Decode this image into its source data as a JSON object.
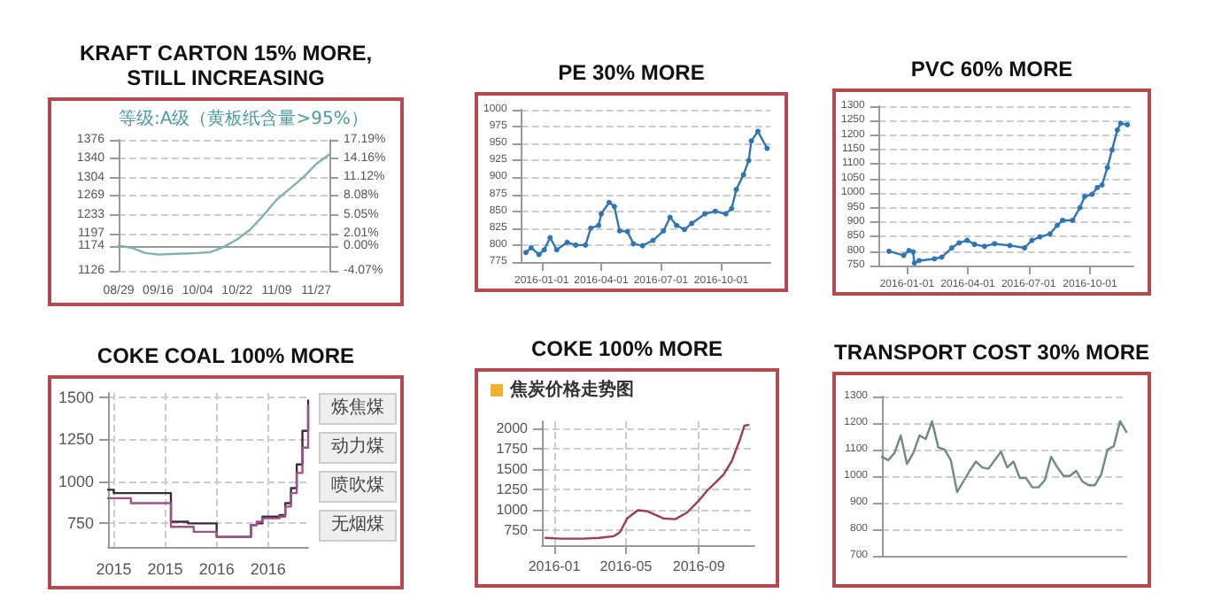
{
  "chart_data": [
    {
      "type": "line",
      "title": "KRAFT CARTON 15% MORE, STILL INCREASING",
      "subtitle": "等级:A级（黄板纸含量>95%）",
      "categories": [
        "08/29",
        null,
        null,
        "09/16",
        null,
        null,
        "10/04",
        null,
        null,
        "10/22",
        null,
        null,
        "11/09",
        null,
        null,
        "11/27",
        null
      ],
      "series": [
        {
          "color": "#7fb0b0",
          "values": [
            1174,
            1170,
            1160,
            1157,
            1158,
            1159,
            1160,
            1162,
            1172,
            1186,
            1205,
            1232,
            1262,
            1283,
            1304,
            1330,
            1348
          ]
        }
      ],
      "ylim": [
        1126,
        1376
      ],
      "yticks": [
        1126,
        1174,
        1197,
        1233,
        1269,
        1304,
        1340,
        1376
      ],
      "y2lim": [
        -4.07,
        17.19
      ],
      "y2ticks": [
        {
          "value": -4.07,
          "label": "-4.07%"
        },
        {
          "value": 0,
          "label": "0.00%"
        },
        {
          "value": 2.01,
          "label": "2.01%"
        },
        {
          "value": 5.05,
          "label": "5.05%"
        },
        {
          "value": 8.08,
          "label": "8.08%"
        },
        {
          "value": 11.12,
          "label": "11.12%"
        },
        {
          "value": 14.16,
          "label": "14.16%"
        },
        {
          "value": 17.19,
          "label": "17.19%"
        }
      ],
      "grid": "y",
      "marker": "none"
    },
    {
      "type": "line",
      "title": "PE 30% MORE",
      "series": [
        {
          "color": "#2e75b6",
          "x": [
            "2015-12-08",
            "2015-12-16",
            "2015-12-28",
            "2016-01-05",
            "2016-01-14",
            "2016-01-24",
            "2016-02-09",
            "2016-02-22",
            "2016-03-08",
            "2016-03-16",
            "2016-03-28",
            "2016-04-01",
            "2016-04-13",
            "2016-04-21",
            "2016-04-29",
            "2016-05-11",
            "2016-05-20",
            "2016-06-03",
            "2016-06-19",
            "2016-07-05",
            "2016-07-15",
            "2016-07-25",
            "2016-08-06",
            "2016-08-17",
            "2016-09-06",
            "2016-09-22",
            "2016-10-08",
            "2016-10-17",
            "2016-10-24",
            "2016-11-04",
            "2016-11-12",
            "2016-11-16",
            "2016-11-26",
            "2016-12-10"
          ],
          "values": [
            789,
            796,
            786,
            793,
            811,
            793,
            804,
            800,
            800,
            825,
            829,
            846,
            863,
            857,
            821,
            820,
            802,
            799,
            807,
            821,
            841,
            829,
            823,
            832,
            846,
            850,
            846,
            854,
            882,
            904,
            925,
            954,
            968,
            943
          ]
        }
      ],
      "xlim": [
        "2015-12-01",
        "2016-12-15"
      ],
      "xticks": [
        "2016-01-01",
        "2016-04-01",
        "2016-07-01",
        "2016-10-01"
      ],
      "ylim": [
        775,
        1000
      ],
      "yticks": [
        775,
        800,
        825,
        850,
        875,
        900,
        925,
        950,
        975,
        1000
      ],
      "grid": "y",
      "marker": "circle"
    },
    {
      "type": "line",
      "title": "PVC 60% MORE",
      "series": [
        {
          "color": "#2e75b6",
          "x": [
            "2015-12-05",
            "2015-12-27",
            "2016-01-04",
            "2016-01-10",
            "2016-01-12",
            "2016-01-19",
            "2016-02-11",
            "2016-02-22",
            "2016-03-08",
            "2016-03-19",
            "2016-03-31",
            "2016-04-11",
            "2016-04-26",
            "2016-05-11",
            "2016-06-03",
            "2016-06-25",
            "2016-07-06",
            "2016-07-18",
            "2016-08-02",
            "2016-08-13",
            "2016-08-21",
            "2016-09-05",
            "2016-09-16",
            "2016-09-23",
            "2016-10-04",
            "2016-10-12",
            "2016-10-19",
            "2016-10-27",
            "2016-11-03",
            "2016-11-11",
            "2016-11-16",
            "2016-11-26"
          ],
          "values": [
            799,
            785,
            802,
            797,
            759,
            767,
            773,
            779,
            811,
            828,
            837,
            823,
            816,
            825,
            819,
            811,
            837,
            849,
            859,
            889,
            906,
            906,
            950,
            988,
            996,
            1019,
            1028,
            1088,
            1149,
            1218,
            1241,
            1236
          ]
        }
      ],
      "xlim": [
        "2015-11-20",
        "2016-12-05"
      ],
      "xticks": [
        "2016-01-01",
        "2016-04-01",
        "2016-07-01",
        "2016-10-01"
      ],
      "ylim": [
        750,
        1300
      ],
      "yticks": [
        750,
        800,
        850,
        900,
        950,
        1000,
        1050,
        1100,
        1150,
        1200,
        1250,
        1300
      ],
      "grid": "y",
      "marker": "circle"
    },
    {
      "type": "step",
      "title": "COKE COAL 100% MORE",
      "annotations": [
        "炼焦煤",
        "动力煤",
        "喷吹煤",
        "无烟煤"
      ],
      "categories": [
        null,
        "2015",
        null,
        null,
        null,
        null,
        null,
        null,
        null,
        null,
        "2015",
        null,
        null,
        null,
        null,
        null,
        null,
        null,
        null,
        "2016",
        null,
        null,
        null,
        null,
        null,
        null,
        null,
        null,
        "2016",
        null,
        null,
        null,
        null,
        null,
        null,
        null
      ],
      "series": [
        {
          "color": "#3a2a3a",
          "values": [
            950,
            930,
            930,
            930,
            930,
            930,
            930,
            930,
            930,
            930,
            930,
            760,
            760,
            760,
            750,
            750,
            750,
            750,
            750,
            670,
            670,
            670,
            670,
            670,
            670,
            740,
            750,
            790,
            790,
            790,
            800,
            870,
            960,
            1100,
            1300,
            1480
          ]
        },
        {
          "color": "#a0508a",
          "values": [
            900,
            900,
            900,
            900,
            870,
            870,
            870,
            870,
            870,
            870,
            870,
            730,
            730,
            730,
            730,
            700,
            700,
            700,
            700,
            670,
            670,
            670,
            670,
            670,
            670,
            740,
            760,
            780,
            780,
            780,
            790,
            850,
            930,
            1050,
            1200,
            1450
          ]
        }
      ],
      "ylim": [
        610,
        1525
      ],
      "yticks": [
        750,
        1000,
        1250,
        1500
      ],
      "grid": true,
      "line_style": "solid",
      "marker": "none"
    },
    {
      "type": "line",
      "title": "COKE 100% MORE",
      "subtitle": "焦炭价格走势图",
      "series": [
        {
          "color": "#9c3c4c",
          "x": [
            "2015-12-17",
            "2016-01-12",
            "2016-02-18",
            "2016-03-17",
            "2016-04-10",
            "2016-04-21",
            "2016-05-03",
            "2016-05-21",
            "2016-06-05",
            "2016-07-03",
            "2016-07-23",
            "2016-08-12",
            "2016-08-31",
            "2016-09-15",
            "2016-09-29",
            "2016-10-13",
            "2016-10-27",
            "2016-11-10",
            "2016-11-17",
            "2016-11-24"
          ],
          "values": [
            650,
            640,
            640,
            650,
            670,
            720,
            890,
            990,
            980,
            890,
            880,
            960,
            1100,
            1230,
            1330,
            1430,
            1600,
            1870,
            2030,
            2040
          ]
        }
      ],
      "xlim": [
        "2015-12-11",
        "2016-12-04"
      ],
      "xticks": [
        "2016-01",
        "2016-05",
        "2016-09"
      ],
      "ylim": [
        560,
        2085
      ],
      "yticks": [
        750,
        1000,
        1250,
        1500,
        1750,
        2000
      ],
      "grid": true,
      "marker": "none"
    },
    {
      "type": "line",
      "title": "TRANSPORT COST 30% MORE",
      "categories": [
        null,
        null,
        null,
        null,
        null,
        null,
        null,
        null,
        null,
        null,
        null,
        null,
        null,
        null,
        null,
        null,
        null,
        null,
        null,
        null,
        null,
        null,
        null,
        null,
        null,
        null,
        null,
        null,
        null,
        null,
        null,
        null,
        null,
        null,
        null,
        null,
        null,
        null,
        null,
        null
      ],
      "series": [
        {
          "color": "#6d8a80",
          "values": [
            1073,
            1060,
            1087,
            1153,
            1046,
            1087,
            1153,
            1140,
            1207,
            1108,
            1100,
            1060,
            940,
            980,
            1020,
            1055,
            1033,
            1028,
            1060,
            1092,
            1033,
            1055,
            993,
            993,
            958,
            958,
            985,
            1073,
            1033,
            1001,
            1001,
            1020,
            980,
            966,
            966,
            1007,
            1100,
            1113,
            1207,
            1167
          ]
        }
      ],
      "ylim": [
        700,
        1300
      ],
      "yticks": [
        700,
        800,
        900,
        1000,
        1100,
        1200,
        1300
      ],
      "grid": "y",
      "marker": "none"
    }
  ]
}
